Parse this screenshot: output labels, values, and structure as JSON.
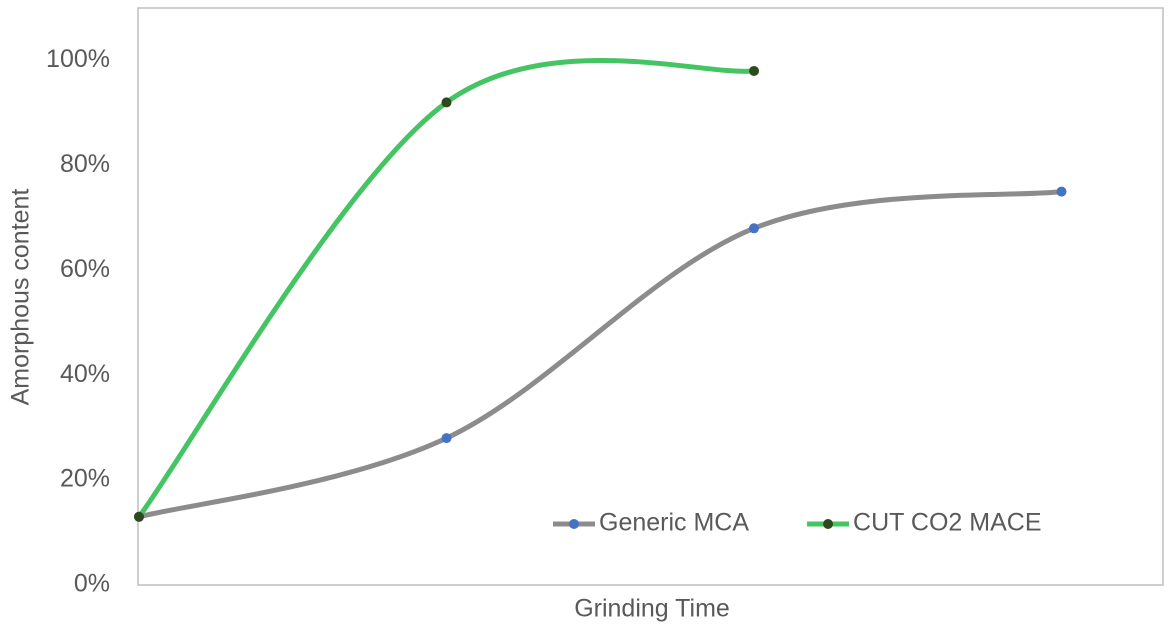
{
  "chart_data": {
    "type": "line",
    "smooth": true,
    "x_label": "Grinding Time",
    "y_label": "Amorphous content",
    "categories": [
      null,
      null,
      null,
      null
    ],
    "series": [
      {
        "name": "Generic MCA",
        "color": "#8c8c8c",
        "marker_color": "#4472c4",
        "values": [
          13,
          28,
          68,
          75
        ]
      },
      {
        "name": "CUT CO2 MACE",
        "color": "#45c463",
        "marker_color": "#2d4a1e",
        "values": [
          13,
          92,
          98,
          null
        ]
      }
    ],
    "ylim": [
      0,
      110
    ],
    "yticks": [
      {
        "value": 0,
        "label": "0%"
      },
      {
        "value": 20,
        "label": "20%"
      },
      {
        "value": 40,
        "label": "40%"
      },
      {
        "value": 60,
        "label": "60%"
      },
      {
        "value": 80,
        "label": "80%"
      },
      {
        "value": 100,
        "label": "100%"
      }
    ],
    "grid": false,
    "legend": "lower right"
  }
}
